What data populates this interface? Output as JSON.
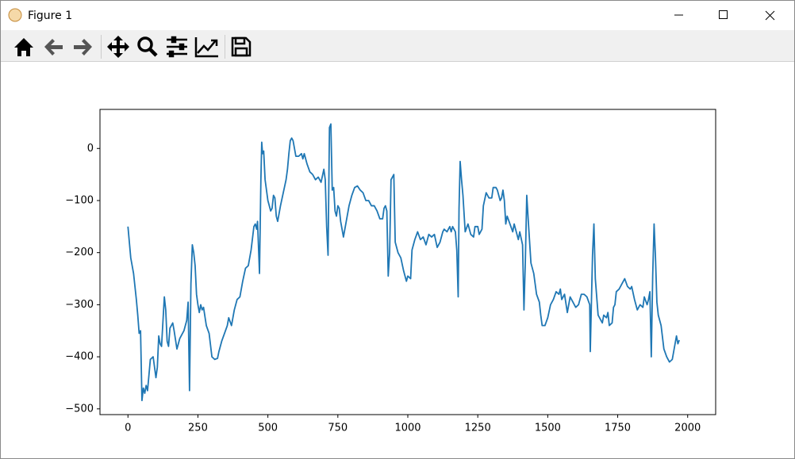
{
  "window": {
    "title": "Figure 1"
  },
  "chart_data": {
    "type": "line",
    "color": "#1f77b4",
    "x": [
      0,
      10,
      20,
      30,
      35,
      40,
      45,
      50,
      55,
      60,
      65,
      70,
      80,
      90,
      100,
      105,
      110,
      115,
      120,
      130,
      135,
      140,
      145,
      150,
      155,
      160,
      165,
      175,
      185,
      200,
      210,
      215,
      220,
      225,
      230,
      235,
      240,
      245,
      250,
      255,
      260,
      265,
      270,
      280,
      290,
      300,
      310,
      320,
      325,
      335,
      345,
      355,
      360,
      370,
      380,
      390,
      400,
      410,
      420,
      430,
      440,
      450,
      455,
      460,
      463,
      470,
      475,
      478,
      481,
      485,
      490,
      500,
      510,
      515,
      520,
      525,
      530,
      535,
      545,
      555,
      565,
      570,
      575,
      580,
      585,
      590,
      595,
      600,
      610,
      620,
      625,
      630,
      640,
      650,
      660,
      670,
      680,
      690,
      700,
      705,
      710,
      715,
      720,
      725,
      730,
      735,
      740,
      745,
      750,
      755,
      760,
      770,
      780,
      790,
      800,
      810,
      820,
      830,
      840,
      850,
      860,
      870,
      880,
      890,
      900,
      910,
      915,
      920,
      925,
      930,
      935,
      940,
      945,
      950,
      955,
      965,
      975,
      985,
      995,
      1000,
      1010,
      1015,
      1025,
      1035,
      1045,
      1055,
      1065,
      1075,
      1085,
      1095,
      1105,
      1115,
      1125,
      1130,
      1140,
      1145,
      1150,
      1155,
      1160,
      1170,
      1175,
      1180,
      1183,
      1187,
      1192,
      1197,
      1205,
      1215,
      1225,
      1235,
      1240,
      1250,
      1255,
      1265,
      1270,
      1280,
      1290,
      1300,
      1305,
      1315,
      1320,
      1330,
      1335,
      1340,
      1345,
      1350,
      1355,
      1365,
      1375,
      1380,
      1390,
      1395,
      1400,
      1410,
      1415,
      1420,
      1425,
      1430,
      1440,
      1450,
      1460,
      1470,
      1475,
      1480,
      1490,
      1500,
      1510,
      1520,
      1530,
      1540,
      1545,
      1550,
      1560,
      1570,
      1580,
      1590,
      1600,
      1610,
      1620,
      1630,
      1640,
      1650,
      1652,
      1660,
      1665,
      1670,
      1680,
      1690,
      1695,
      1700,
      1710,
      1715,
      1720,
      1730,
      1735,
      1740,
      1745,
      1755,
      1765,
      1775,
      1785,
      1795,
      1800,
      1810,
      1820,
      1830,
      1840,
      1845,
      1855,
      1860,
      1865,
      1870,
      1875,
      1880,
      1885,
      1890,
      1895,
      1905,
      1915,
      1925,
      1935,
      1945,
      1955,
      1960,
      1965,
      1970
    ],
    "values": [
      -150,
      -210,
      -240,
      -290,
      -320,
      -355,
      -350,
      -484,
      -460,
      -470,
      -455,
      -465,
      -405,
      -400,
      -440,
      -420,
      -360,
      -375,
      -380,
      -285,
      -310,
      -370,
      -380,
      -345,
      -340,
      -335,
      -350,
      -385,
      -365,
      -350,
      -330,
      -295,
      -465,
      -260,
      -185,
      -200,
      -225,
      -280,
      -300,
      -315,
      -300,
      -310,
      -305,
      -340,
      -355,
      -400,
      -405,
      -403,
      -390,
      -370,
      -355,
      -340,
      -325,
      -340,
      -310,
      -290,
      -285,
      -255,
      -230,
      -225,
      -195,
      -150,
      -145,
      -155,
      -140,
      -240,
      -60,
      12,
      -10,
      -5,
      -60,
      -100,
      -120,
      -115,
      -90,
      -95,
      -130,
      -140,
      -110,
      -85,
      -60,
      -40,
      -10,
      15,
      20,
      15,
      0,
      -15,
      -15,
      -10,
      -20,
      -10,
      -30,
      -45,
      -50,
      -60,
      -55,
      -65,
      -40,
      -60,
      -150,
      -205,
      40,
      47,
      -80,
      -75,
      -120,
      -130,
      -110,
      -115,
      -140,
      -170,
      -140,
      -110,
      -90,
      -75,
      -72,
      -80,
      -85,
      -100,
      -100,
      -110,
      -110,
      -120,
      -135,
      -135,
      -115,
      -110,
      -120,
      -245,
      -200,
      -60,
      -55,
      -50,
      -180,
      -200,
      -210,
      -235,
      -255,
      -245,
      -250,
      -195,
      -175,
      -160,
      -175,
      -170,
      -185,
      -165,
      -170,
      -165,
      -190,
      -180,
      -160,
      -155,
      -160,
      -155,
      -150,
      -160,
      -150,
      -160,
      -195,
      -285,
      -115,
      -25,
      -60,
      -90,
      -160,
      -145,
      -165,
      -170,
      -150,
      -150,
      -165,
      -155,
      -110,
      -85,
      -95,
      -95,
      -75,
      -75,
      -80,
      -100,
      -95,
      -80,
      -100,
      -145,
      -130,
      -145,
      -160,
      -145,
      -165,
      -175,
      -160,
      -185,
      -310,
      -215,
      -90,
      -135,
      -220,
      -240,
      -280,
      -295,
      -320,
      -340,
      -340,
      -325,
      -300,
      -290,
      -275,
      -280,
      -270,
      -290,
      -280,
      -315,
      -285,
      -295,
      -305,
      -300,
      -280,
      -280,
      -285,
      -300,
      -390,
      -205,
      -145,
      -250,
      -320,
      -330,
      -335,
      -320,
      -325,
      -315,
      -340,
      -335,
      -305,
      -300,
      -275,
      -270,
      -260,
      -250,
      -265,
      -270,
      -265,
      -290,
      -310,
      -300,
      -305,
      -285,
      -300,
      -290,
      -275,
      -400,
      -245,
      -145,
      -210,
      -295,
      -320,
      -340,
      -385,
      -400,
      -410,
      -405,
      -375,
      -360,
      -375,
      -368
    ],
    "xlim": [
      -100,
      2100
    ],
    "xticks": [
      0,
      250,
      500,
      750,
      1000,
      1250,
      1500,
      1750,
      2000
    ],
    "ylim": [
      -511,
      75
    ],
    "yticks": [
      {
        "value": -500,
        "label": "−500"
      },
      {
        "value": -400,
        "label": "−400"
      },
      {
        "value": -300,
        "label": "−300"
      },
      {
        "value": -200,
        "label": "−200"
      },
      {
        "value": -100,
        "label": "−100"
      },
      0
    ]
  }
}
